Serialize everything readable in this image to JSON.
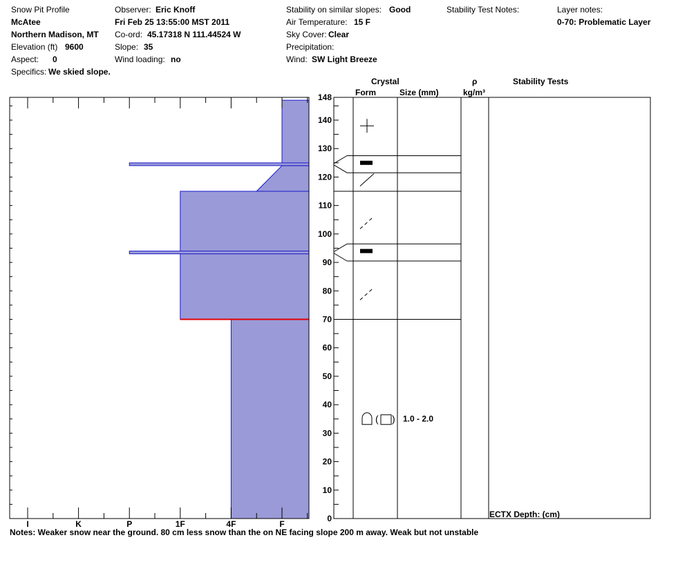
{
  "header": {
    "title": "Snow Pit Profile",
    "location_name": "McAtee",
    "region": "Northern Madison, MT",
    "elevation_label": "Elevation (ft)",
    "elevation_value": "9600",
    "aspect_label": "Aspect:",
    "aspect_value": "0",
    "specifics_label": "Specifics:",
    "specifics_value": "We skied slope.",
    "observer_label": "Observer:",
    "observer_value": "Eric Knoff",
    "datetime": "Fri Feb 25 13:55:00 MST 2011",
    "coord_label": "Co-ord:",
    "coord_value": "45.17318 N 111.44524 W",
    "slope_label": "Slope:",
    "slope_value": "35",
    "wind_loading_label": "Wind loading:",
    "wind_loading_value": "no",
    "stability_label": "Stability on similar slopes:",
    "stability_value": "Good",
    "air_temp_label": "Air Temperature:",
    "air_temp_value": "15 F",
    "sky_label": "Sky Cover:",
    "sky_value": "Clear",
    "precip_label": "Precipitation:",
    "wind_label": "Wind:",
    "wind_value": "SW Light Breeze",
    "stability_notes_label": "Stability Test Notes:",
    "layer_notes_label": "Layer notes:",
    "layer_notes_value": "0-70: Problematic Layer"
  },
  "columns": {
    "crystal": "Crystal",
    "form": "Form",
    "size": "Size (mm)",
    "rho": "ρ",
    "density_unit": "kg/m³",
    "stability_tests": "Stability Tests"
  },
  "notes": "Notes:  Weaker snow near the ground.  80 cm less snow than the on NE facing slope 200 m away.  Weak but not unstable",
  "stability_test_entry": "ECTX   Depth: (cm)",
  "colors": {
    "hardness_fill": "#9a9ad8",
    "hardness_stroke": "#1a1acc",
    "problem_line": "#e00000"
  },
  "chart_data": {
    "type": "area",
    "hardness_scale": [
      "I",
      "K",
      "P",
      "1F",
      "4F",
      "F"
    ],
    "depth_ticks": [
      0,
      10,
      20,
      30,
      40,
      50,
      60,
      70,
      80,
      90,
      100,
      110,
      120,
      130,
      140,
      148
    ],
    "depth_range_cm": [
      0,
      148
    ],
    "hardness_profile": [
      {
        "from_cm": 0,
        "to_cm": 70,
        "hardness_index": 4
      },
      {
        "from_cm": 70,
        "to_cm": 115,
        "hardness_index": 3
      },
      {
        "from_cm": 115,
        "to_cm": 124,
        "hardness_index_bottom": 4.5,
        "hardness_index_top": 5
      },
      {
        "from_cm": 124,
        "to_cm": 147,
        "hardness_index": 5
      }
    ],
    "thin_layers": [
      {
        "depth_cm": 124.5,
        "hardness_index": 2
      },
      {
        "depth_cm": 93.5,
        "hardness_index": 2
      }
    ],
    "problem_layer_cm": 70,
    "layer_boundaries_cm": [
      127.5,
      121.5,
      115,
      96.5,
      90.5,
      70
    ],
    "grain_symbols": [
      {
        "depth_cm": 138,
        "form": "plus",
        "size": ""
      },
      {
        "depth_cm": 125,
        "form": "bar",
        "size": ""
      },
      {
        "depth_cm": 119,
        "form": "slash",
        "size": ""
      },
      {
        "depth_cm": 104,
        "form": "dashslash",
        "size": ""
      },
      {
        "depth_cm": 94,
        "form": "bar",
        "size": ""
      },
      {
        "depth_cm": 79,
        "form": "dashslash",
        "size": ""
      },
      {
        "depth_cm": 35,
        "form": "depth-hoar-faceted",
        "size": "1.0 - 2.0"
      }
    ]
  }
}
